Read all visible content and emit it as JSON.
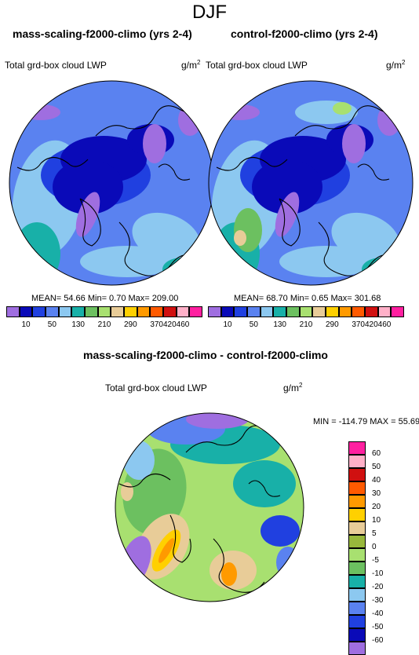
{
  "suptitle": "DJF",
  "panels": [
    {
      "title": "mass-scaling-f2000-climo (yrs 2-4)",
      "left_label": "Total grd-box cloud LWP",
      "units_main": "g/m",
      "units_exp": "2",
      "stats": "MEAN=  54.66  Min=   0.70  Max= 209.00"
    },
    {
      "title": "control-f2000-climo (yrs 2-4)",
      "left_label": "Total grd-box cloud LWP",
      "units_main": "g/m",
      "units_exp": "2",
      "stats": "MEAN=  68.70  Min=   0.65  Max= 301.68"
    },
    {
      "title": "mass-scaling-f2000-climo - control-f2000-climo",
      "left_label": "Total grd-box cloud LWP",
      "units_main": "g/m",
      "units_exp": "2",
      "stats": "MIN = -114.79 MAX =  55.69"
    }
  ],
  "chart_data": [
    {
      "type": "heatmap",
      "projection": "north-polar-stereographic",
      "title": "mass-scaling-f2000-climo (yrs 2-4)",
      "variable": "Total grd-box cloud LWP",
      "units": "g/m2",
      "mean": 54.66,
      "min": 0.7,
      "max": 209.0,
      "colorbar_levels": [
        10,
        50,
        130,
        210,
        290,
        370,
        420,
        460
      ],
      "colorbar_colors": [
        "#9f6ee0",
        "#0a0ab8",
        "#2040e0",
        "#5a82f0",
        "#8cc8f0",
        "#18b0a8",
        "#6cc060",
        "#a8e070",
        "#e8cc98",
        "#ffd000",
        "#ff9a00",
        "#ff5a00",
        "#d01010",
        "#ffb0c8",
        "#ff20a0"
      ]
    },
    {
      "type": "heatmap",
      "projection": "north-polar-stereographic",
      "title": "control-f2000-climo (yrs 2-4)",
      "variable": "Total grd-box cloud LWP",
      "units": "g/m2",
      "mean": 68.7,
      "min": 0.65,
      "max": 301.68,
      "colorbar_levels": [
        10,
        50,
        130,
        210,
        290,
        370,
        420,
        460
      ],
      "colorbar_colors": [
        "#9f6ee0",
        "#0a0ab8",
        "#2040e0",
        "#5a82f0",
        "#8cc8f0",
        "#18b0a8",
        "#6cc060",
        "#a8e070",
        "#e8cc98",
        "#ffd000",
        "#ff9a00",
        "#ff5a00",
        "#d01010",
        "#ffb0c8",
        "#ff20a0"
      ]
    },
    {
      "type": "heatmap",
      "projection": "north-polar-stereographic",
      "title": "mass-scaling-f2000-climo - control-f2000-climo",
      "variable": "Total grd-box cloud LWP",
      "units": "g/m2",
      "min": -114.79,
      "max": 55.69,
      "colorbar_levels": [
        -60,
        -50,
        -40,
        -30,
        -20,
        -10,
        -5,
        0,
        5,
        10,
        20,
        30,
        40,
        50,
        60
      ],
      "colorbar_colors": [
        "#9f6ee0",
        "#0a0ab8",
        "#2040e0",
        "#5a82f0",
        "#8cc8f0",
        "#18b0a8",
        "#6cc060",
        "#a8e070",
        "#98b83c",
        "#e8cc98",
        "#ffd000",
        "#ff9a00",
        "#ff5a00",
        "#d01010",
        "#ffb0c8",
        "#ff20a0"
      ]
    }
  ]
}
